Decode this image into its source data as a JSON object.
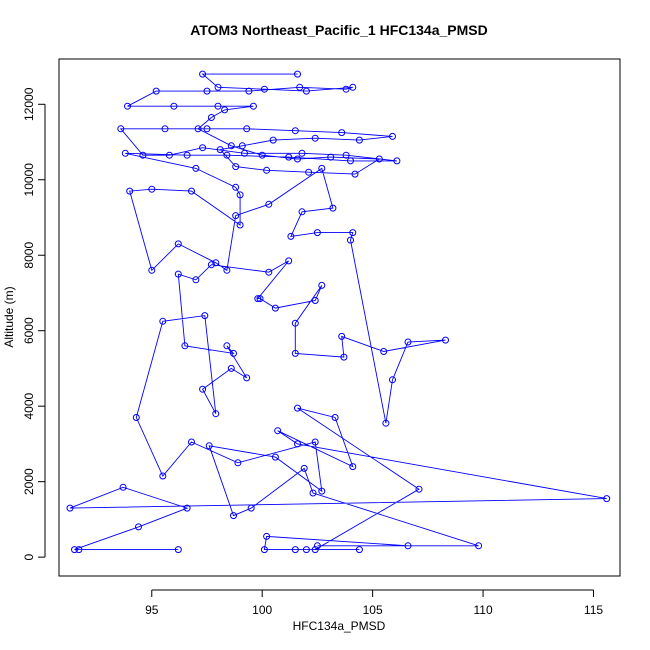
{
  "chart_data": {
    "type": "line",
    "title": "ATOM3 Northeast_Pacific_1 HFC134a_PMSD",
    "xlabel": "HFC134a_PMSD",
    "ylabel": "Altitude (m)",
    "xlim": [
      90.8,
      116.2
    ],
    "ylim": [
      -500,
      13200
    ],
    "xticks": [
      95,
      100,
      105,
      110,
      115
    ],
    "yticks": [
      0,
      2000,
      4000,
      6000,
      8000,
      10000,
      12000
    ],
    "marker": "open-circle",
    "color": "#0000ff",
    "series": [
      {
        "points": [
          [
            96.2,
            200
          ],
          [
            91.7,
            200
          ],
          [
            91.5,
            200
          ],
          [
            94.4,
            800
          ],
          [
            96.6,
            1300
          ],
          [
            93.7,
            1850
          ],
          [
            91.3,
            1300
          ],
          [
            115.6,
            1550
          ],
          [
            101.6,
            3000
          ],
          [
            100.7,
            3350
          ],
          [
            104.1,
            2400
          ],
          [
            103.3,
            3700
          ],
          [
            101.6,
            3950
          ],
          [
            107.1,
            1800
          ],
          [
            102.4,
            200
          ],
          [
            104.4,
            200
          ],
          [
            102.0,
            200
          ],
          [
            101.5,
            200
          ],
          [
            100.1,
            200
          ],
          [
            100.2,
            550
          ],
          [
            106.6,
            300
          ],
          [
            102.5,
            300
          ],
          [
            109.8,
            300
          ],
          [
            102.3,
            1700
          ],
          [
            101.9,
            2350
          ],
          [
            99.5,
            1300
          ],
          [
            98.7,
            1100
          ],
          [
            97.6,
            2950
          ],
          [
            100.6,
            2650
          ],
          [
            102.7,
            1750
          ],
          [
            102.4,
            3050
          ],
          [
            98.9,
            2500
          ],
          [
            96.8,
            3050
          ],
          [
            95.5,
            2150
          ],
          [
            94.3,
            3700
          ],
          [
            95.5,
            6250
          ],
          [
            97.4,
            6400
          ],
          [
            97.9,
            3800
          ],
          [
            97.3,
            4450
          ],
          [
            98.6,
            5000
          ],
          [
            99.3,
            4750
          ],
          [
            98.4,
            5600
          ],
          [
            98.7,
            5400
          ],
          [
            96.5,
            5600
          ],
          [
            96.2,
            7500
          ],
          [
            97.0,
            7350
          ],
          [
            97.7,
            7750
          ],
          [
            100.3,
            7550
          ],
          [
            101.2,
            7850
          ],
          [
            99.8,
            6850
          ],
          [
            99.9,
            6850
          ],
          [
            100.6,
            6600
          ],
          [
            102.4,
            6800
          ],
          [
            102.7,
            7200
          ],
          [
            101.5,
            6200
          ],
          [
            101.5,
            5400
          ],
          [
            103.7,
            5300
          ],
          [
            103.6,
            5850
          ],
          [
            105.5,
            5450
          ],
          [
            108.3,
            5750
          ],
          [
            106.6,
            5700
          ],
          [
            105.9,
            4700
          ],
          [
            105.6,
            3550
          ],
          [
            104.0,
            8400
          ],
          [
            104.1,
            8600
          ],
          [
            102.5,
            8600
          ],
          [
            101.3,
            8500
          ],
          [
            101.8,
            9150
          ],
          [
            103.2,
            9250
          ],
          [
            102.7,
            10300
          ],
          [
            100.3,
            9350
          ],
          [
            98.8,
            9050
          ],
          [
            98.4,
            7600
          ],
          [
            97.9,
            7800
          ],
          [
            96.2,
            8300
          ],
          [
            95.0,
            7600
          ],
          [
            94.0,
            9700
          ],
          [
            95.0,
            9750
          ],
          [
            96.8,
            9700
          ],
          [
            99.0,
            8800
          ],
          [
            99.0,
            9600
          ],
          [
            98.8,
            9800
          ],
          [
            97.0,
            10300
          ],
          [
            93.8,
            10700
          ],
          [
            96.6,
            10650
          ],
          [
            98.4,
            10650
          ],
          [
            101.2,
            10600
          ],
          [
            104.0,
            10500
          ],
          [
            106.1,
            10500
          ],
          [
            103.8,
            10650
          ],
          [
            101.8,
            10700
          ],
          [
            99.2,
            10700
          ],
          [
            97.3,
            10850
          ],
          [
            95.8,
            10650
          ],
          [
            94.6,
            10650
          ],
          [
            93.6,
            11350
          ],
          [
            95.6,
            11350
          ],
          [
            97.5,
            11350
          ],
          [
            99.3,
            11350
          ],
          [
            101.5,
            11300
          ],
          [
            103.6,
            11250
          ],
          [
            105.9,
            11150
          ],
          [
            104.4,
            11050
          ],
          [
            102.4,
            11100
          ],
          [
            100.5,
            11050
          ],
          [
            99.1,
            10900
          ],
          [
            98.1,
            10800
          ],
          [
            98.8,
            10350
          ],
          [
            100.2,
            10250
          ],
          [
            102.1,
            10200
          ],
          [
            104.2,
            10150
          ],
          [
            105.3,
            10550
          ],
          [
            103.1,
            10600
          ],
          [
            101.6,
            10550
          ],
          [
            100.0,
            10650
          ],
          [
            98.6,
            10900
          ],
          [
            97.1,
            11350
          ],
          [
            97.7,
            11650
          ],
          [
            98.3,
            11850
          ],
          [
            99.6,
            11950
          ],
          [
            98.0,
            11950
          ],
          [
            96.0,
            11950
          ],
          [
            93.9,
            11950
          ],
          [
            95.2,
            12350
          ],
          [
            97.5,
            12350
          ],
          [
            99.4,
            12350
          ],
          [
            101.7,
            12450
          ],
          [
            103.8,
            12400
          ],
          [
            104.1,
            12450
          ],
          [
            102.0,
            12350
          ],
          [
            100.1,
            12400
          ],
          [
            98.0,
            12450
          ],
          [
            97.3,
            12800
          ],
          [
            101.6,
            12800
          ]
        ]
      }
    ]
  }
}
